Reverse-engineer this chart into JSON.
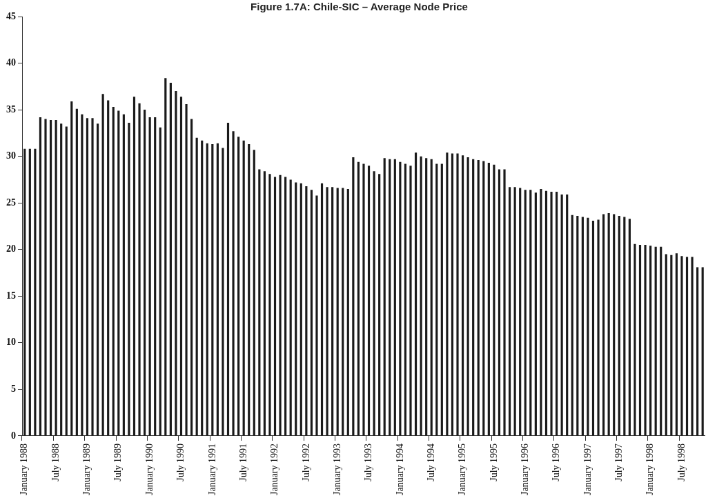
{
  "chart_data": {
    "type": "bar",
    "title": "Figure 1.7A: Chile-SIC – Average Node Price",
    "categories": [
      "January 1988",
      null,
      null,
      null,
      null,
      null,
      "July 1988",
      null,
      null,
      null,
      null,
      null,
      "January 1989",
      null,
      null,
      null,
      null,
      null,
      "July 1989",
      null,
      null,
      null,
      null,
      null,
      "January 1990",
      null,
      null,
      null,
      null,
      null,
      "July 1990",
      null,
      null,
      null,
      null,
      null,
      "January 1991",
      null,
      null,
      null,
      null,
      null,
      "July 1991",
      null,
      null,
      null,
      null,
      null,
      "January 1992",
      null,
      null,
      null,
      null,
      null,
      "July 1992",
      null,
      null,
      null,
      null,
      null,
      "January 1993",
      null,
      null,
      null,
      null,
      null,
      "July 1993",
      null,
      null,
      null,
      null,
      null,
      "January 1994",
      null,
      null,
      null,
      null,
      null,
      "July 1994",
      null,
      null,
      null,
      null,
      null,
      "January 1995",
      null,
      null,
      null,
      null,
      null,
      "July 1995",
      null,
      null,
      null,
      null,
      null,
      "January 1996",
      null,
      null,
      null,
      null,
      null,
      "July 1996",
      null,
      null,
      null,
      null,
      null,
      "January 1997",
      null,
      null,
      null,
      null,
      null,
      "July 1997",
      null,
      null,
      null,
      null,
      null,
      "January 1998",
      null,
      null,
      null,
      null,
      null,
      "July 1998",
      null,
      null,
      null,
      null
    ],
    "values": [
      30.8,
      30.8,
      30.8,
      34.2,
      34.0,
      33.9,
      33.9,
      33.5,
      33.2,
      35.9,
      35.1,
      34.5,
      34.1,
      34.1,
      33.5,
      36.7,
      36.0,
      35.3,
      34.9,
      34.5,
      33.6,
      36.4,
      35.7,
      35.0,
      34.2,
      34.2,
      33.1,
      38.4,
      37.9,
      37.0,
      36.4,
      35.6,
      34.0,
      32.0,
      31.7,
      31.4,
      31.3,
      31.4,
      30.9,
      33.6,
      32.7,
      32.1,
      31.7,
      31.3,
      30.7,
      28.6,
      28.4,
      28.1,
      27.8,
      28.0,
      27.8,
      27.5,
      27.2,
      27.1,
      26.8,
      26.4,
      25.8,
      27.1,
      26.7,
      26.7,
      26.6,
      26.6,
      26.5,
      29.9,
      29.4,
      29.2,
      29.0,
      28.4,
      28.1,
      29.8,
      29.7,
      29.7,
      29.4,
      29.2,
      29.0,
      30.4,
      30.0,
      29.8,
      29.7,
      29.2,
      29.2,
      30.4,
      30.3,
      30.3,
      30.1,
      29.9,
      29.7,
      29.6,
      29.5,
      29.3,
      29.1,
      28.6,
      28.6,
      26.7,
      26.7,
      26.6,
      26.4,
      26.4,
      26.1,
      26.5,
      26.3,
      26.2,
      26.2,
      25.9,
      25.9,
      23.7,
      23.6,
      23.5,
      23.4,
      23.1,
      23.2,
      23.8,
      23.9,
      23.8,
      23.6,
      23.5,
      23.3,
      20.6,
      20.5,
      20.5,
      20.4,
      20.3,
      20.3,
      19.5,
      19.4,
      19.6,
      19.3,
      19.2,
      19.2,
      18.1,
      18.1
    ],
    "color": "#1a1a1a",
    "ylim": [
      0,
      45
    ],
    "yticks": [
      0,
      5,
      10,
      15,
      20,
      25,
      30,
      35,
      40,
      45
    ],
    "grid": false,
    "legend": false
  }
}
